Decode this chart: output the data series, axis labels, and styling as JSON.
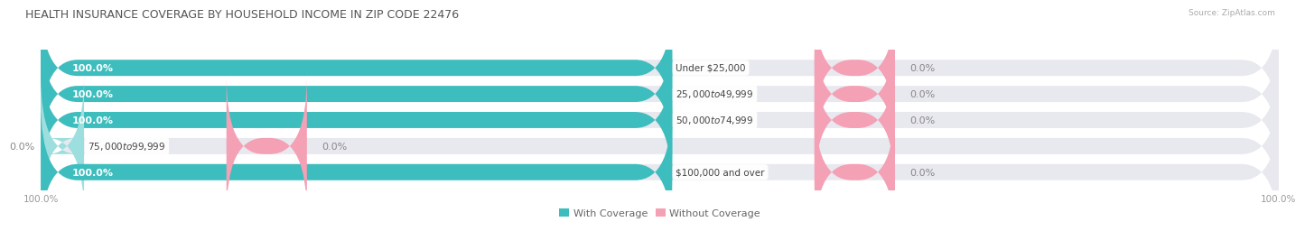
{
  "title": "HEALTH INSURANCE COVERAGE BY HOUSEHOLD INCOME IN ZIP CODE 22476",
  "source": "Source: ZipAtlas.com",
  "categories": [
    "Under $25,000",
    "$25,000 to $49,999",
    "$50,000 to $74,999",
    "$75,000 to $99,999",
    "$100,000 and over"
  ],
  "with_coverage": [
    100.0,
    100.0,
    100.0,
    0.0,
    100.0
  ],
  "without_coverage": [
    0.0,
    0.0,
    0.0,
    0.0,
    0.0
  ],
  "color_with": "#3dbdbd",
  "color_without": "#f4a0b5",
  "bar_bg_color": "#e8e8ef",
  "bg_color": "#ffffff",
  "title_fontsize": 9.0,
  "label_fontsize": 8.0,
  "cat_fontsize": 7.5,
  "tick_fontsize": 7.5,
  "bar_height": 0.62,
  "row_sep_color": "#ffffff",
  "pct_label_color_white": "#ffffff",
  "pct_label_color_gray": "#888888",
  "cat_label_color": "#444444"
}
